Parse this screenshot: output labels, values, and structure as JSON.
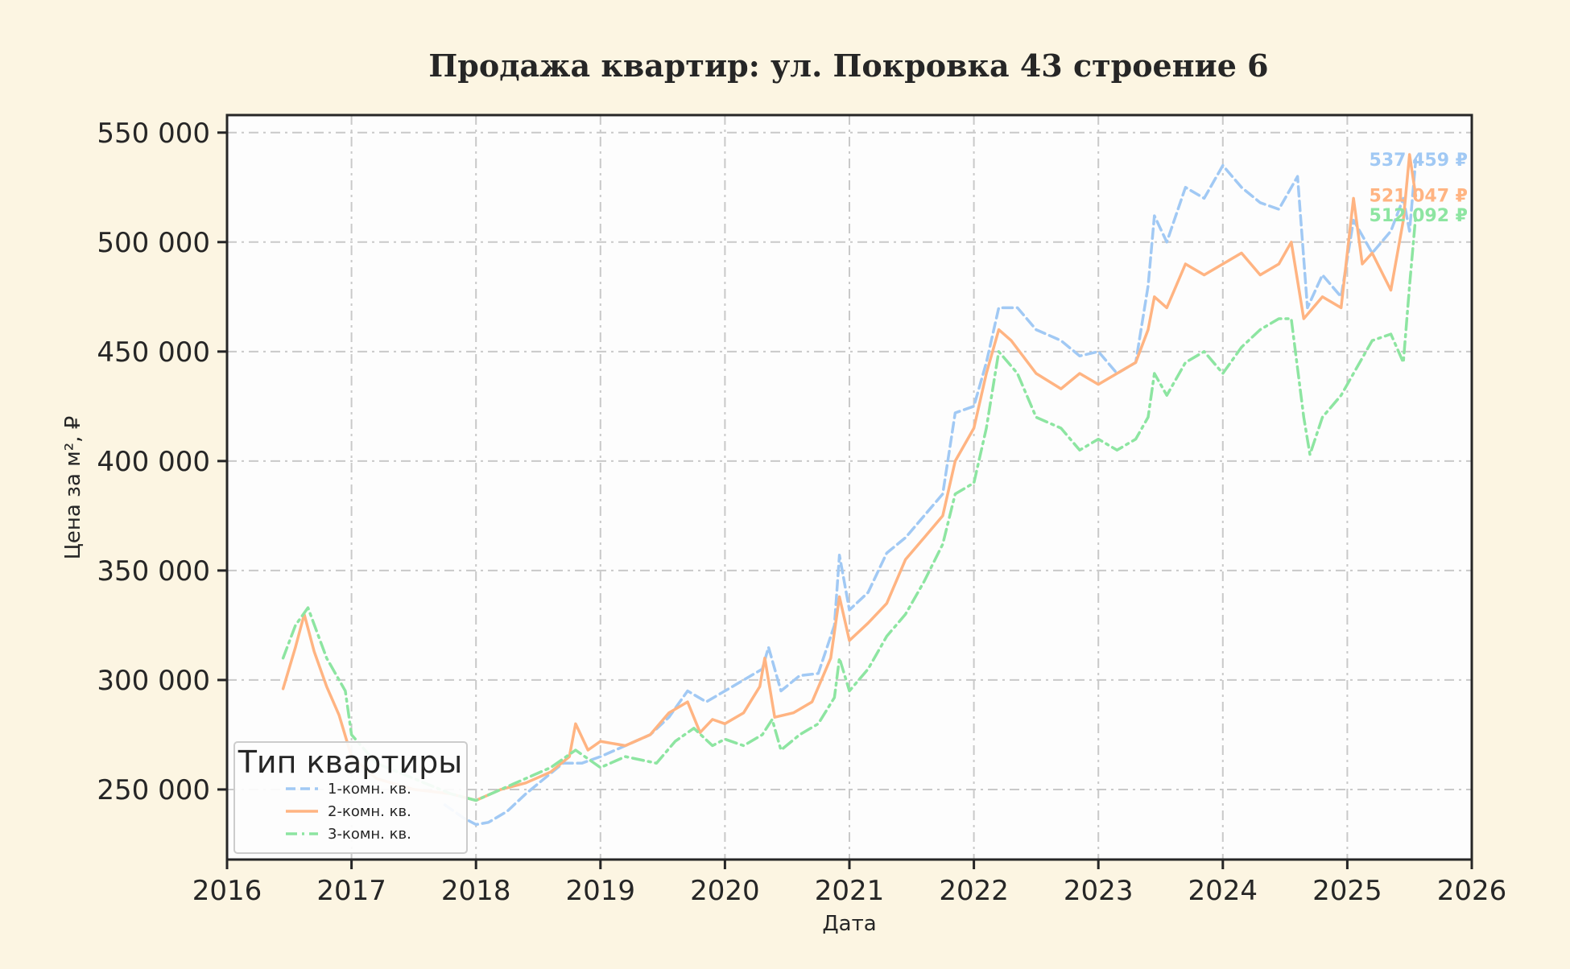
{
  "chart_data": {
    "type": "line",
    "title": "Продажа квартир: ул. Покровка 43 строение 6",
    "xlabel": "Дата",
    "ylabel": "Цена за м², ₽",
    "xlim": [
      2016,
      2026
    ],
    "ylim": [
      218000,
      558000
    ],
    "x_ticks": [
      2016,
      2017,
      2018,
      2019,
      2020,
      2021,
      2022,
      2023,
      2024,
      2025,
      2026
    ],
    "y_ticks": [
      250000,
      300000,
      350000,
      400000,
      450000,
      500000,
      550000
    ],
    "y_tick_labels": [
      "250 000",
      "300 000",
      "350 000",
      "400 000",
      "450 000",
      "500 000",
      "550 000"
    ],
    "grid": true,
    "legend": {
      "title": "Тип квартиры",
      "placement": "lower-left",
      "entries": [
        "1-комн. кв.",
        "2-комн. кв.",
        "3-комн. кв."
      ]
    },
    "colors": [
      "#a1c9f4",
      "#ffb482",
      "#8de5a1"
    ],
    "end_labels": [
      "537 459 ₽",
      "521 047 ₽",
      "512 092 ₽"
    ],
    "series": [
      {
        "name": "1-комн. кв.",
        "style": "dashed",
        "x": [
          2017.75,
          2017.9,
          2018.0,
          2018.1,
          2018.25,
          2018.4,
          2018.55,
          2018.7,
          2018.85,
          2019.0,
          2019.2,
          2019.4,
          2019.55,
          2019.7,
          2019.85,
          2020.0,
          2020.15,
          2020.3,
          2020.35,
          2020.45,
          2020.6,
          2020.75,
          2020.88,
          2020.92,
          2021.0,
          2021.15,
          2021.3,
          2021.45,
          2021.6,
          2021.75,
          2021.85,
          2022.0,
          2022.1,
          2022.2,
          2022.35,
          2022.5,
          2022.7,
          2022.85,
          2023.0,
          2023.15,
          2023.3,
          2023.4,
          2023.45,
          2023.55,
          2023.7,
          2023.85,
          2024.0,
          2024.15,
          2024.3,
          2024.45,
          2024.6,
          2024.68,
          2024.8,
          2024.95,
          2025.05,
          2025.2,
          2025.35,
          2025.45,
          2025.5,
          2025.55
        ],
        "y": [
          243000,
          237000,
          234000,
          235000,
          240000,
          248000,
          255000,
          262000,
          262000,
          265000,
          270000,
          275000,
          283000,
          295000,
          290000,
          295000,
          300000,
          305000,
          315000,
          295000,
          302000,
          303000,
          325000,
          357000,
          332000,
          340000,
          358000,
          365000,
          375000,
          385000,
          422000,
          425000,
          445000,
          470000,
          470000,
          460000,
          455000,
          448000,
          450000,
          440000,
          445000,
          480000,
          512000,
          500000,
          525000,
          520000,
          535000,
          525000,
          518000,
          515000,
          530000,
          470000,
          485000,
          475000,
          510000,
          495000,
          505000,
          520000,
          505000,
          537459
        ]
      },
      {
        "name": "2-комн. кв.",
        "style": "solid",
        "x": [
          2016.45,
          2016.55,
          2016.62,
          2016.7,
          2016.8,
          2016.9,
          2017.0,
          2017.2,
          2017.5,
          2017.8,
          2018.0,
          2018.2,
          2018.4,
          2018.6,
          2018.75,
          2018.8,
          2018.9,
          2019.0,
          2019.2,
          2019.4,
          2019.55,
          2019.7,
          2019.8,
          2019.9,
          2020.0,
          2020.15,
          2020.28,
          2020.32,
          2020.4,
          2020.55,
          2020.7,
          2020.85,
          2020.92,
          2021.0,
          2021.15,
          2021.3,
          2021.45,
          2021.6,
          2021.75,
          2021.85,
          2022.0,
          2022.1,
          2022.2,
          2022.3,
          2022.5,
          2022.7,
          2022.85,
          2023.0,
          2023.15,
          2023.3,
          2023.4,
          2023.45,
          2023.55,
          2023.7,
          2023.85,
          2024.0,
          2024.15,
          2024.3,
          2024.45,
          2024.55,
          2024.65,
          2024.8,
          2024.95,
          2025.05,
          2025.12,
          2025.2,
          2025.35,
          2025.45,
          2025.5,
          2025.55
        ],
        "y": [
          296000,
          315000,
          330000,
          313000,
          297000,
          284000,
          265000,
          255000,
          250000,
          248000,
          245000,
          250000,
          253000,
          258000,
          265000,
          280000,
          268000,
          272000,
          270000,
          275000,
          285000,
          290000,
          276000,
          282000,
          280000,
          285000,
          297000,
          310000,
          283000,
          285000,
          290000,
          310000,
          338000,
          318000,
          326000,
          335000,
          355000,
          365000,
          375000,
          400000,
          415000,
          440000,
          460000,
          455000,
          440000,
          433000,
          440000,
          435000,
          440000,
          445000,
          460000,
          475000,
          470000,
          490000,
          485000,
          490000,
          495000,
          485000,
          490000,
          500000,
          465000,
          475000,
          470000,
          520000,
          490000,
          495000,
          478000,
          510000,
          540000,
          521047
        ]
      },
      {
        "name": "3-комн. кв.",
        "style": "dashdot",
        "x": [
          2016.45,
          2016.55,
          2016.65,
          2016.8,
          2016.95,
          2017.0,
          2017.2,
          2017.5,
          2017.8,
          2018.0,
          2018.2,
          2018.4,
          2018.6,
          2018.8,
          2019.0,
          2019.2,
          2019.45,
          2019.6,
          2019.75,
          2019.9,
          2020.0,
          2020.15,
          2020.3,
          2020.38,
          2020.45,
          2020.6,
          2020.75,
          2020.88,
          2020.92,
          2021.0,
          2021.15,
          2021.3,
          2021.45,
          2021.6,
          2021.75,
          2021.85,
          2022.0,
          2022.1,
          2022.2,
          2022.35,
          2022.5,
          2022.7,
          2022.85,
          2023.0,
          2023.15,
          2023.3,
          2023.4,
          2023.45,
          2023.55,
          2023.7,
          2023.85,
          2024.0,
          2024.15,
          2024.3,
          2024.45,
          2024.55,
          2024.65,
          2024.7,
          2024.8,
          2024.95,
          2025.05,
          2025.2,
          2025.35,
          2025.45,
          2025.5,
          2025.55
        ],
        "y": [
          310000,
          325000,
          333000,
          310000,
          295000,
          275000,
          262000,
          255000,
          248000,
          245000,
          250000,
          255000,
          260000,
          268000,
          260000,
          265000,
          262000,
          272000,
          278000,
          270000,
          273000,
          270000,
          275000,
          282000,
          268000,
          275000,
          280000,
          292000,
          310000,
          295000,
          305000,
          320000,
          330000,
          345000,
          362000,
          385000,
          390000,
          415000,
          450000,
          440000,
          420000,
          415000,
          405000,
          410000,
          405000,
          410000,
          420000,
          440000,
          430000,
          445000,
          450000,
          440000,
          452000,
          460000,
          465000,
          465000,
          420000,
          403000,
          420000,
          430000,
          440000,
          455000,
          458000,
          445000,
          480000,
          512092
        ]
      }
    ]
  }
}
